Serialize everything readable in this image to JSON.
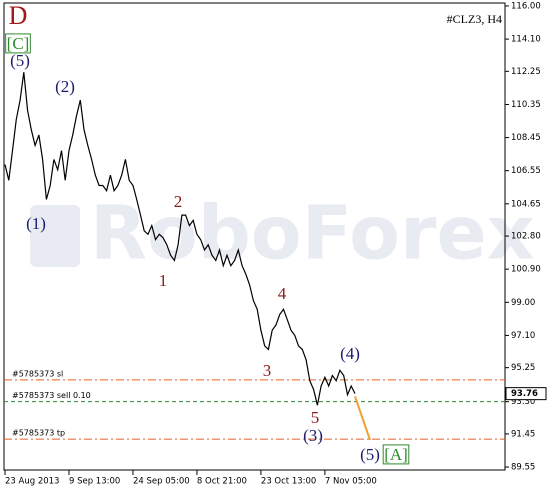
{
  "chart_data": {
    "type": "line",
    "title": "#CLZ3, H4",
    "watermark": "RoboForex",
    "color": "#000000",
    "values": [
      106.9,
      106.0,
      107.7,
      109.5,
      110.6,
      112.2,
      110.0,
      108.9,
      108.0,
      108.6,
      107.2,
      104.9,
      105.7,
      107.2,
      106.6,
      107.7,
      106.0,
      107.7,
      108.6,
      109.7,
      110.6,
      108.9,
      108.0,
      107.2,
      106.3,
      105.7,
      105.7,
      105.4,
      106.3,
      105.4,
      105.7,
      106.3,
      107.2,
      106.0,
      105.7,
      104.9,
      104.0,
      103.1,
      102.9,
      103.4,
      102.6,
      102.9,
      102.7,
      102.3,
      101.7,
      101.4,
      102.3,
      104.0,
      104.0,
      103.4,
      103.7,
      102.9,
      102.6,
      102.0,
      102.3,
      101.7,
      101.4,
      102.0,
      101.1,
      101.7,
      101.1,
      101.4,
      102.0,
      101.1,
      100.6,
      100.0,
      99.1,
      98.6,
      97.4,
      96.5,
      96.3,
      97.4,
      97.7,
      98.3,
      98.6,
      98.0,
      97.4,
      97.1,
      96.5,
      96.3,
      95.7,
      94.5,
      94.0,
      93.1,
      94.2,
      94.7,
      94.2,
      94.8,
      94.5,
      95.1,
      94.8,
      93.7,
      94.2,
      93.76
    ],
    "ylim": [
      89.38,
      116.17
    ],
    "yticks": [
      {
        "value": 116,
        "label": "116.00"
      },
      {
        "value": 114.1,
        "label": "114.10"
      },
      {
        "value": 112.25,
        "label": "112.25"
      },
      {
        "value": 110.35,
        "label": "110.35"
      },
      {
        "value": 108.45,
        "label": "108.45"
      },
      {
        "value": 106.55,
        "label": "106.55"
      },
      {
        "value": 104.65,
        "label": "104.65"
      },
      {
        "value": 102.8,
        "label": "102.80"
      },
      {
        "value": 100.9,
        "label": "100.90"
      },
      {
        "value": 99,
        "label": "99.00"
      },
      {
        "value": 97.1,
        "label": "97.10"
      },
      {
        "value": 95.25,
        "label": "95.25"
      },
      {
        "value": 93.3,
        "label": "93.30"
      },
      {
        "value": 91.45,
        "label": "91.45"
      },
      {
        "value": 89.55,
        "label": "89.55"
      }
    ],
    "xticks": [
      {
        "value": 0,
        "label": "23 Aug 2013"
      },
      {
        "value": 17,
        "label": "9 Sep 13:00"
      },
      {
        "value": 34,
        "label": "24 Sep 05:00"
      },
      {
        "value": 51,
        "label": "8 Oct 21:00"
      },
      {
        "value": 68,
        "label": "23 Oct 13:00"
      },
      {
        "value": 85,
        "label": "7 Nov 05:00"
      }
    ],
    "levels": [
      {
        "name": "#5785373 sl",
        "value": 94.55,
        "color": "#e0602a"
      },
      {
        "name": "#5785373 sell 0.10",
        "value": 93.3,
        "color": "#2e8b2e"
      },
      {
        "name": "#5785373 tp",
        "value": 91.15,
        "color": "#e0602a"
      }
    ],
    "forecast": {
      "color": "#f0a030",
      "values": [
        93.6,
        91.1
      ]
    },
    "annotations": [
      {
        "text": "D",
        "color": "#a01818"
      },
      {
        "text": "[C]",
        "color": "#2e8b2e"
      },
      {
        "text": "(5)",
        "color": "#1a1a6e"
      },
      {
        "text": "(2)",
        "color": "#1a1a6e"
      },
      {
        "text": "(1)",
        "color": "#1a1a6e"
      },
      {
        "text": "1",
        "color": "#8b1a1a"
      },
      {
        "text": "2",
        "color": "#8b1a1a"
      },
      {
        "text": "3",
        "color": "#8b1a1a"
      },
      {
        "text": "4",
        "color": "#8b1a1a"
      },
      {
        "text": "5",
        "color": "#8b1a1a"
      },
      {
        "text": "(3)",
        "color": "#1a1a6e"
      },
      {
        "text": "(4)",
        "color": "#1a1a6e"
      },
      {
        "text": "(5)",
        "color": "#1a1a6e"
      },
      {
        "text": "[A]",
        "color": "#2e8b2e"
      }
    ]
  }
}
